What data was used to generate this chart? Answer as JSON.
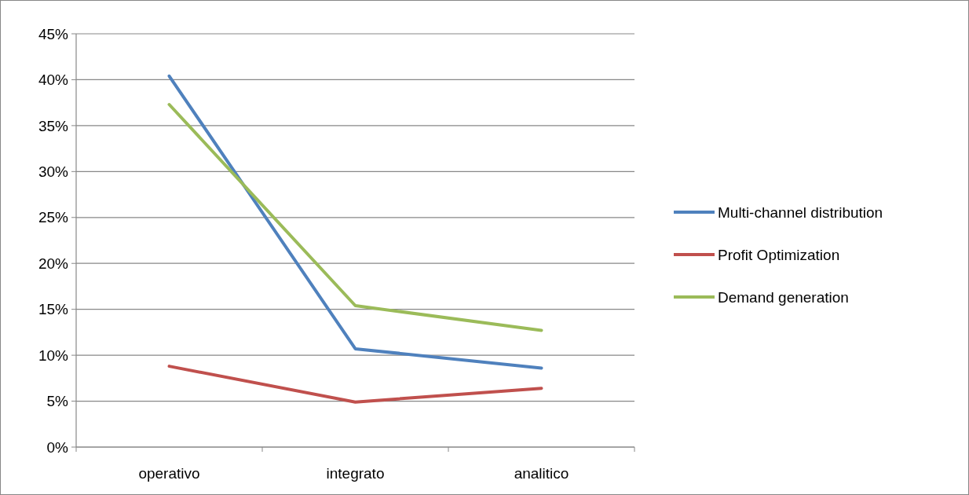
{
  "chart_data": {
    "type": "line",
    "categories": [
      "operativo",
      "integrato",
      "analitico"
    ],
    "series": [
      {
        "name": "Multi-channel distribution",
        "color": "#4f81bd",
        "values": [
          40.4,
          10.7,
          8.6
        ]
      },
      {
        "name": "Profit Optimization",
        "color": "#c0504d",
        "values": [
          8.8,
          4.9,
          6.4
        ]
      },
      {
        "name": "Demand generation",
        "color": "#9bbb59",
        "values": [
          37.3,
          15.4,
          12.7
        ]
      }
    ],
    "ylim": [
      0,
      45
    ],
    "yticks": [
      {
        "value": 0,
        "label": "0%"
      },
      {
        "value": 5,
        "label": "5%"
      },
      {
        "value": 10,
        "label": "10%"
      },
      {
        "value": 15,
        "label": "15%"
      },
      {
        "value": 20,
        "label": "20%"
      },
      {
        "value": 25,
        "label": "25%"
      },
      {
        "value": 30,
        "label": "30%"
      },
      {
        "value": 35,
        "label": "35%"
      },
      {
        "value": 40,
        "label": "40%"
      },
      {
        "value": 45,
        "label": "45%"
      }
    ],
    "grid": "y",
    "legend": "right",
    "marker": "none",
    "line_style": "solid"
  }
}
